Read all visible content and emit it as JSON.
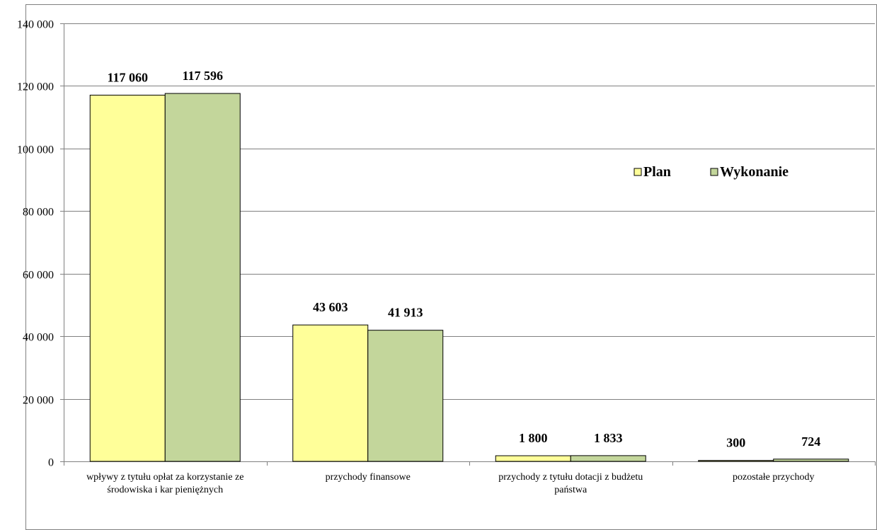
{
  "chart_data": {
    "type": "bar",
    "title": "",
    "xlabel": "",
    "ylabel": "",
    "ylim": [
      0,
      140000
    ],
    "yticks": [
      0,
      20000,
      40000,
      60000,
      80000,
      100000,
      120000,
      140000
    ],
    "ytick_labels": [
      "0",
      "20 000",
      "40 000",
      "60 000",
      "80 000",
      "100 000",
      "120 000",
      "140 000"
    ],
    "grid": true,
    "legend_position": "right",
    "categories": [
      [
        "wpływy z tytułu opłat za korzystanie ze",
        "środowiska i kar pieniężnych"
      ],
      [
        "przychody finansowe"
      ],
      [
        "przychody z tytułu dotacji z budżetu",
        "państwa"
      ],
      [
        "pozostałe przychody"
      ]
    ],
    "series": [
      {
        "name": "Plan",
        "color": "#FFFF99",
        "values": [
          117060,
          43603,
          1800,
          300
        ],
        "labels": [
          "117 060",
          "43 603",
          "1 800",
          "300"
        ]
      },
      {
        "name": "Wykonanie",
        "color": "#C3D69B",
        "values": [
          117596,
          41913,
          1833,
          724
        ],
        "labels": [
          "117 596",
          "41 913",
          "1 833",
          "724"
        ]
      }
    ]
  }
}
